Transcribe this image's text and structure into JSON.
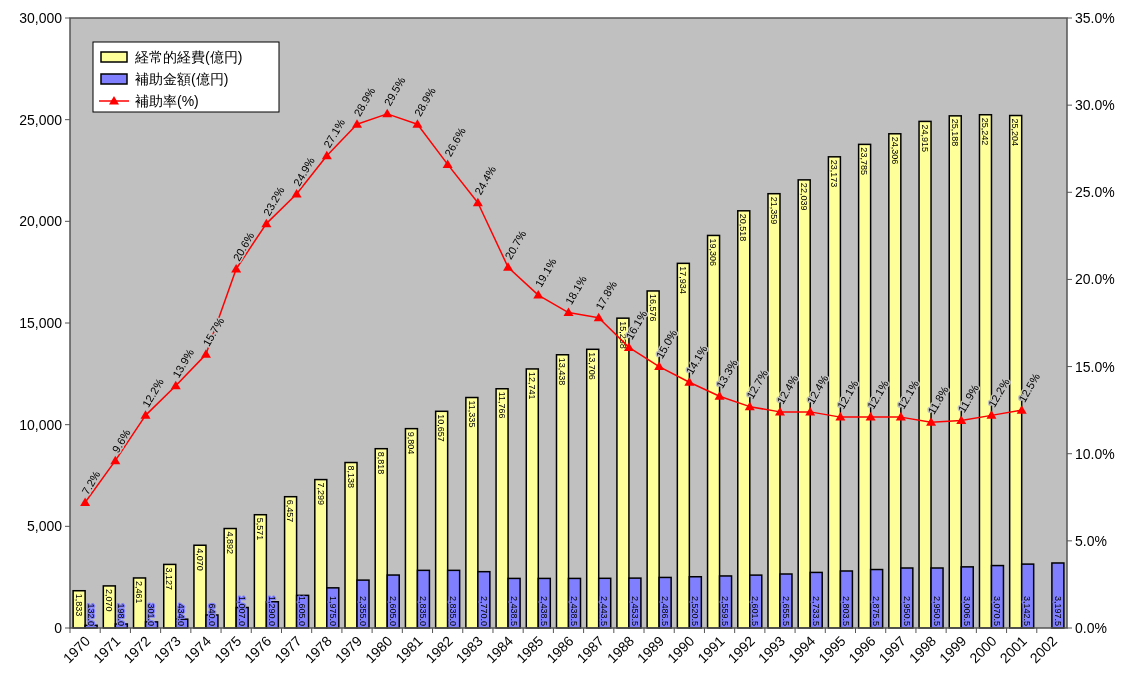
{
  "chart_data": {
    "type": "bar",
    "categories": [
      "1970",
      "1971",
      "1972",
      "1973",
      "1974",
      "1975",
      "1976",
      "1977",
      "1978",
      "1979",
      "1980",
      "1981",
      "1982",
      "1983",
      "1984",
      "1985",
      "1986",
      "1987",
      "1988",
      "1989",
      "1990",
      "1991",
      "1992",
      "1993",
      "1994",
      "1995",
      "1996",
      "1997",
      "1998",
      "1999",
      "2000",
      "2001",
      "2002"
    ],
    "series": [
      {
        "name": "経常的経費(億円)",
        "color": "#ffff99",
        "values": [
          1833,
          2070,
          2461,
          3127,
          4070,
          4892,
          5571,
          6457,
          7299,
          8138,
          8818,
          9804,
          10657,
          11335,
          11766,
          12741,
          13438,
          13706,
          15238,
          16576,
          17934,
          19306,
          20518,
          21359,
          22039,
          23173,
          23785,
          24306,
          24915,
          25188,
          25242,
          25204,
          null
        ],
        "value_labels": [
          "1,833",
          "2,070",
          "2,461",
          "3,127",
          "4,070",
          "4,892",
          "5,571",
          "6,457",
          "7,299",
          "8,138",
          "8,818",
          "9,804",
          "10,657",
          "11,335",
          "11,766",
          "12,741",
          "13,438",
          "13,706",
          "15,238",
          "16,576",
          "17,934",
          "19,306",
          "20,518",
          "21,359",
          "22,039",
          "23,173",
          "23,785",
          "24,306",
          "24,915",
          "25,188",
          "25,242",
          "25,204",
          null
        ]
      },
      {
        "name": "補助金額(億円)",
        "color": "#8080ff",
        "values": [
          132.0,
          198.0,
          301.0,
          434.0,
          640.0,
          1007.0,
          1290.0,
          1605.0,
          1975.0,
          2355.0,
          2605.0,
          2835.0,
          2835.0,
          2770.0,
          2438.5,
          2438.5,
          2438.5,
          2443.5,
          2453.5,
          2486.5,
          2520.5,
          2559.5,
          2601.5,
          2655.5,
          2733.5,
          2803.5,
          2875.5,
          2950.5,
          2950.5,
          3006.5,
          3070.5,
          3142.5,
          3197.5
        ],
        "value_labels": [
          "132.0",
          "198.0",
          "301.0",
          "434.0",
          "640.0",
          "1,007.0",
          "1,290.0",
          "1,605.0",
          "1,975.0",
          "2,355.0",
          "2,605.0",
          "2,835.0",
          "2,835.0",
          "2,770.0",
          "2,438.5",
          "2,438.5",
          "2,438.5",
          "2,443.5",
          "2,453.5",
          "2,486.5",
          "2,520.5",
          "2,559.5",
          "2,601.5",
          "2,655.5",
          "2,733.5",
          "2,803.5",
          "2,875.5",
          "2,950.5",
          "2,950.5",
          "3,006.5",
          "3,070.5",
          "3,142.5",
          "3,197.5"
        ]
      },
      {
        "name": "補助率(%)",
        "type": "line",
        "axis": "y2",
        "color": "#ff0000",
        "marker": "triangle",
        "values": [
          7.2,
          9.6,
          12.2,
          13.9,
          15.7,
          20.6,
          23.2,
          24.9,
          27.1,
          28.9,
          29.5,
          28.9,
          26.6,
          24.4,
          20.7,
          19.1,
          18.1,
          17.8,
          16.1,
          15.0,
          14.1,
          13.3,
          12.7,
          12.4,
          12.4,
          12.1,
          12.1,
          12.1,
          11.8,
          11.9,
          12.2,
          12.5,
          null
        ],
        "value_labels": [
          "7.2%",
          "9.6%",
          "12.2%",
          "13.9%",
          "15.7%",
          "20.6%",
          "23.2%",
          "24.9%",
          "27.1%",
          "28.9%",
          "29.5%",
          "28.9%",
          "26.6%",
          "24.4%",
          "20.7%",
          "19.1%",
          "18.1%",
          "17.8%",
          "16.1%",
          "15.0%",
          "14.1%",
          "13.3%",
          "12.7%",
          "12.4%",
          "12.4%",
          "12.1%",
          "12.1%",
          "12.1%",
          "11.8%",
          "11.9%",
          "12.2%",
          "12.5%",
          null
        ]
      }
    ],
    "ylim": [
      0,
      30000
    ],
    "yticks": [
      {
        "value": 0,
        "label": "0"
      },
      {
        "value": 5000,
        "label": "5,000"
      },
      {
        "value": 10000,
        "label": "10,000"
      },
      {
        "value": 15000,
        "label": "15,000"
      },
      {
        "value": 20000,
        "label": "20,000"
      },
      {
        "value": 25000,
        "label": "25,000"
      },
      {
        "value": 30000,
        "label": "30,000"
      }
    ],
    "y2lim": [
      0,
      35
    ],
    "y2ticks": [
      {
        "value": 0,
        "label": "0.0%"
      },
      {
        "value": 5,
        "label": "5.0%"
      },
      {
        "value": 10,
        "label": "10.0%"
      },
      {
        "value": 15,
        "label": "15.0%"
      },
      {
        "value": 20,
        "label": "20.0%"
      },
      {
        "value": 25,
        "label": "25.0%"
      },
      {
        "value": 30,
        "label": "30.0%"
      },
      {
        "value": 35,
        "label": "35.0%"
      }
    ],
    "legend": "top left",
    "grid": false
  }
}
